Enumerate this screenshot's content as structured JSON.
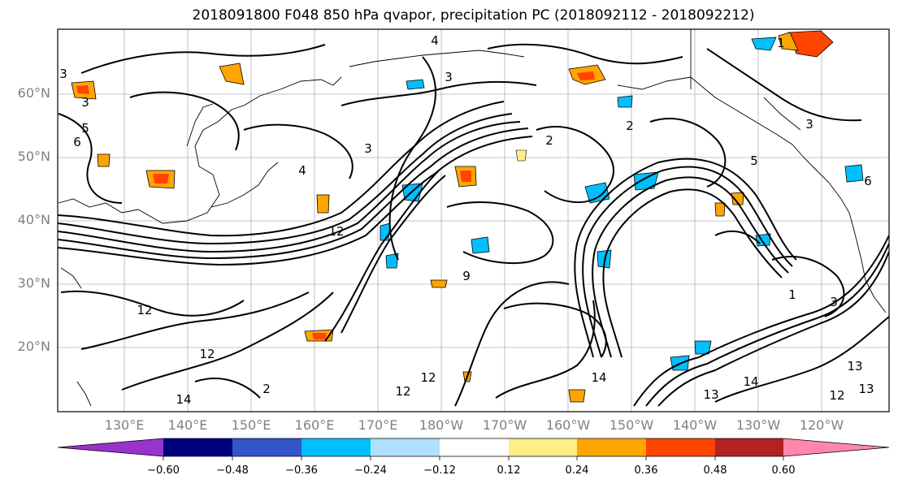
{
  "title": "2018091800 F048 850 hPa qvapor, precipitation PC (2018092112 - 2018092212)",
  "lat_labels": [
    "60°N",
    "50°N",
    "40°N",
    "30°N",
    "20°N"
  ],
  "lon_labels": [
    "130°E",
    "140°E",
    "150°E",
    "160°E",
    "170°E",
    "180°W",
    "170°W",
    "160°W",
    "150°W",
    "140°W",
    "130°W",
    "120°W"
  ],
  "colorbar": {
    "colors": [
      "#9933cc",
      "#000080",
      "#3355cc",
      "#00bfff",
      "#b0e0ff",
      "#ffffff",
      "#ffee88",
      "#ffa500",
      "#ff4400",
      "#b22222",
      "#ff88aa"
    ],
    "tick_labels": [
      "−0.60",
      "−0.48",
      "−0.36",
      "−0.24",
      "−0.12",
      "0.12",
      "0.24",
      "0.36",
      "0.48",
      "0.60"
    ]
  },
  "contour_labels": [
    "3",
    "3",
    "5",
    "6",
    "4",
    "3",
    "2",
    "3",
    "12",
    "9",
    "12",
    "12",
    "12",
    "14",
    "12",
    "2",
    "2",
    "4",
    "14",
    "13",
    "14",
    "13",
    "12",
    "13",
    "1",
    "3",
    "3",
    "5",
    "6",
    "1"
  ]
}
